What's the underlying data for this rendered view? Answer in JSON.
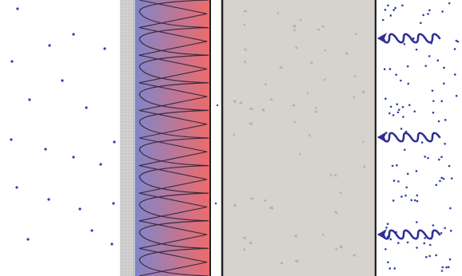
{
  "diagram": {
    "layers": [
      {
        "id": "interior-air",
        "kind": "air",
        "dots": "sparse"
      },
      {
        "id": "plaster-finish",
        "kind": "plaster"
      },
      {
        "id": "insulation-batt",
        "kind": "insulation",
        "coils": 10,
        "gradient": [
          "#7f86cc",
          "#f06a6a"
        ]
      },
      {
        "id": "air-gap",
        "kind": "cavity"
      },
      {
        "id": "concrete-block",
        "kind": "concrete"
      },
      {
        "id": "exterior-air",
        "kind": "air",
        "dots": "dense"
      }
    ],
    "arrows": [
      {
        "id": "moisture-arrow-top",
        "direction": "left",
        "icon": "wavy-arrow-icon"
      },
      {
        "id": "moisture-arrow-middle",
        "direction": "left",
        "icon": "wavy-arrow-icon"
      },
      {
        "id": "moisture-arrow-bottom",
        "direction": "left",
        "icon": "wavy-arrow-icon"
      }
    ],
    "colors": {
      "arrow": "#2e2e96",
      "air_dot": "#2d3fa6",
      "concrete": "#d6d3cf",
      "concrete_speck": "#a9a6a2",
      "plaster": "#c7c7c7",
      "wall_line": "#222222"
    }
  }
}
